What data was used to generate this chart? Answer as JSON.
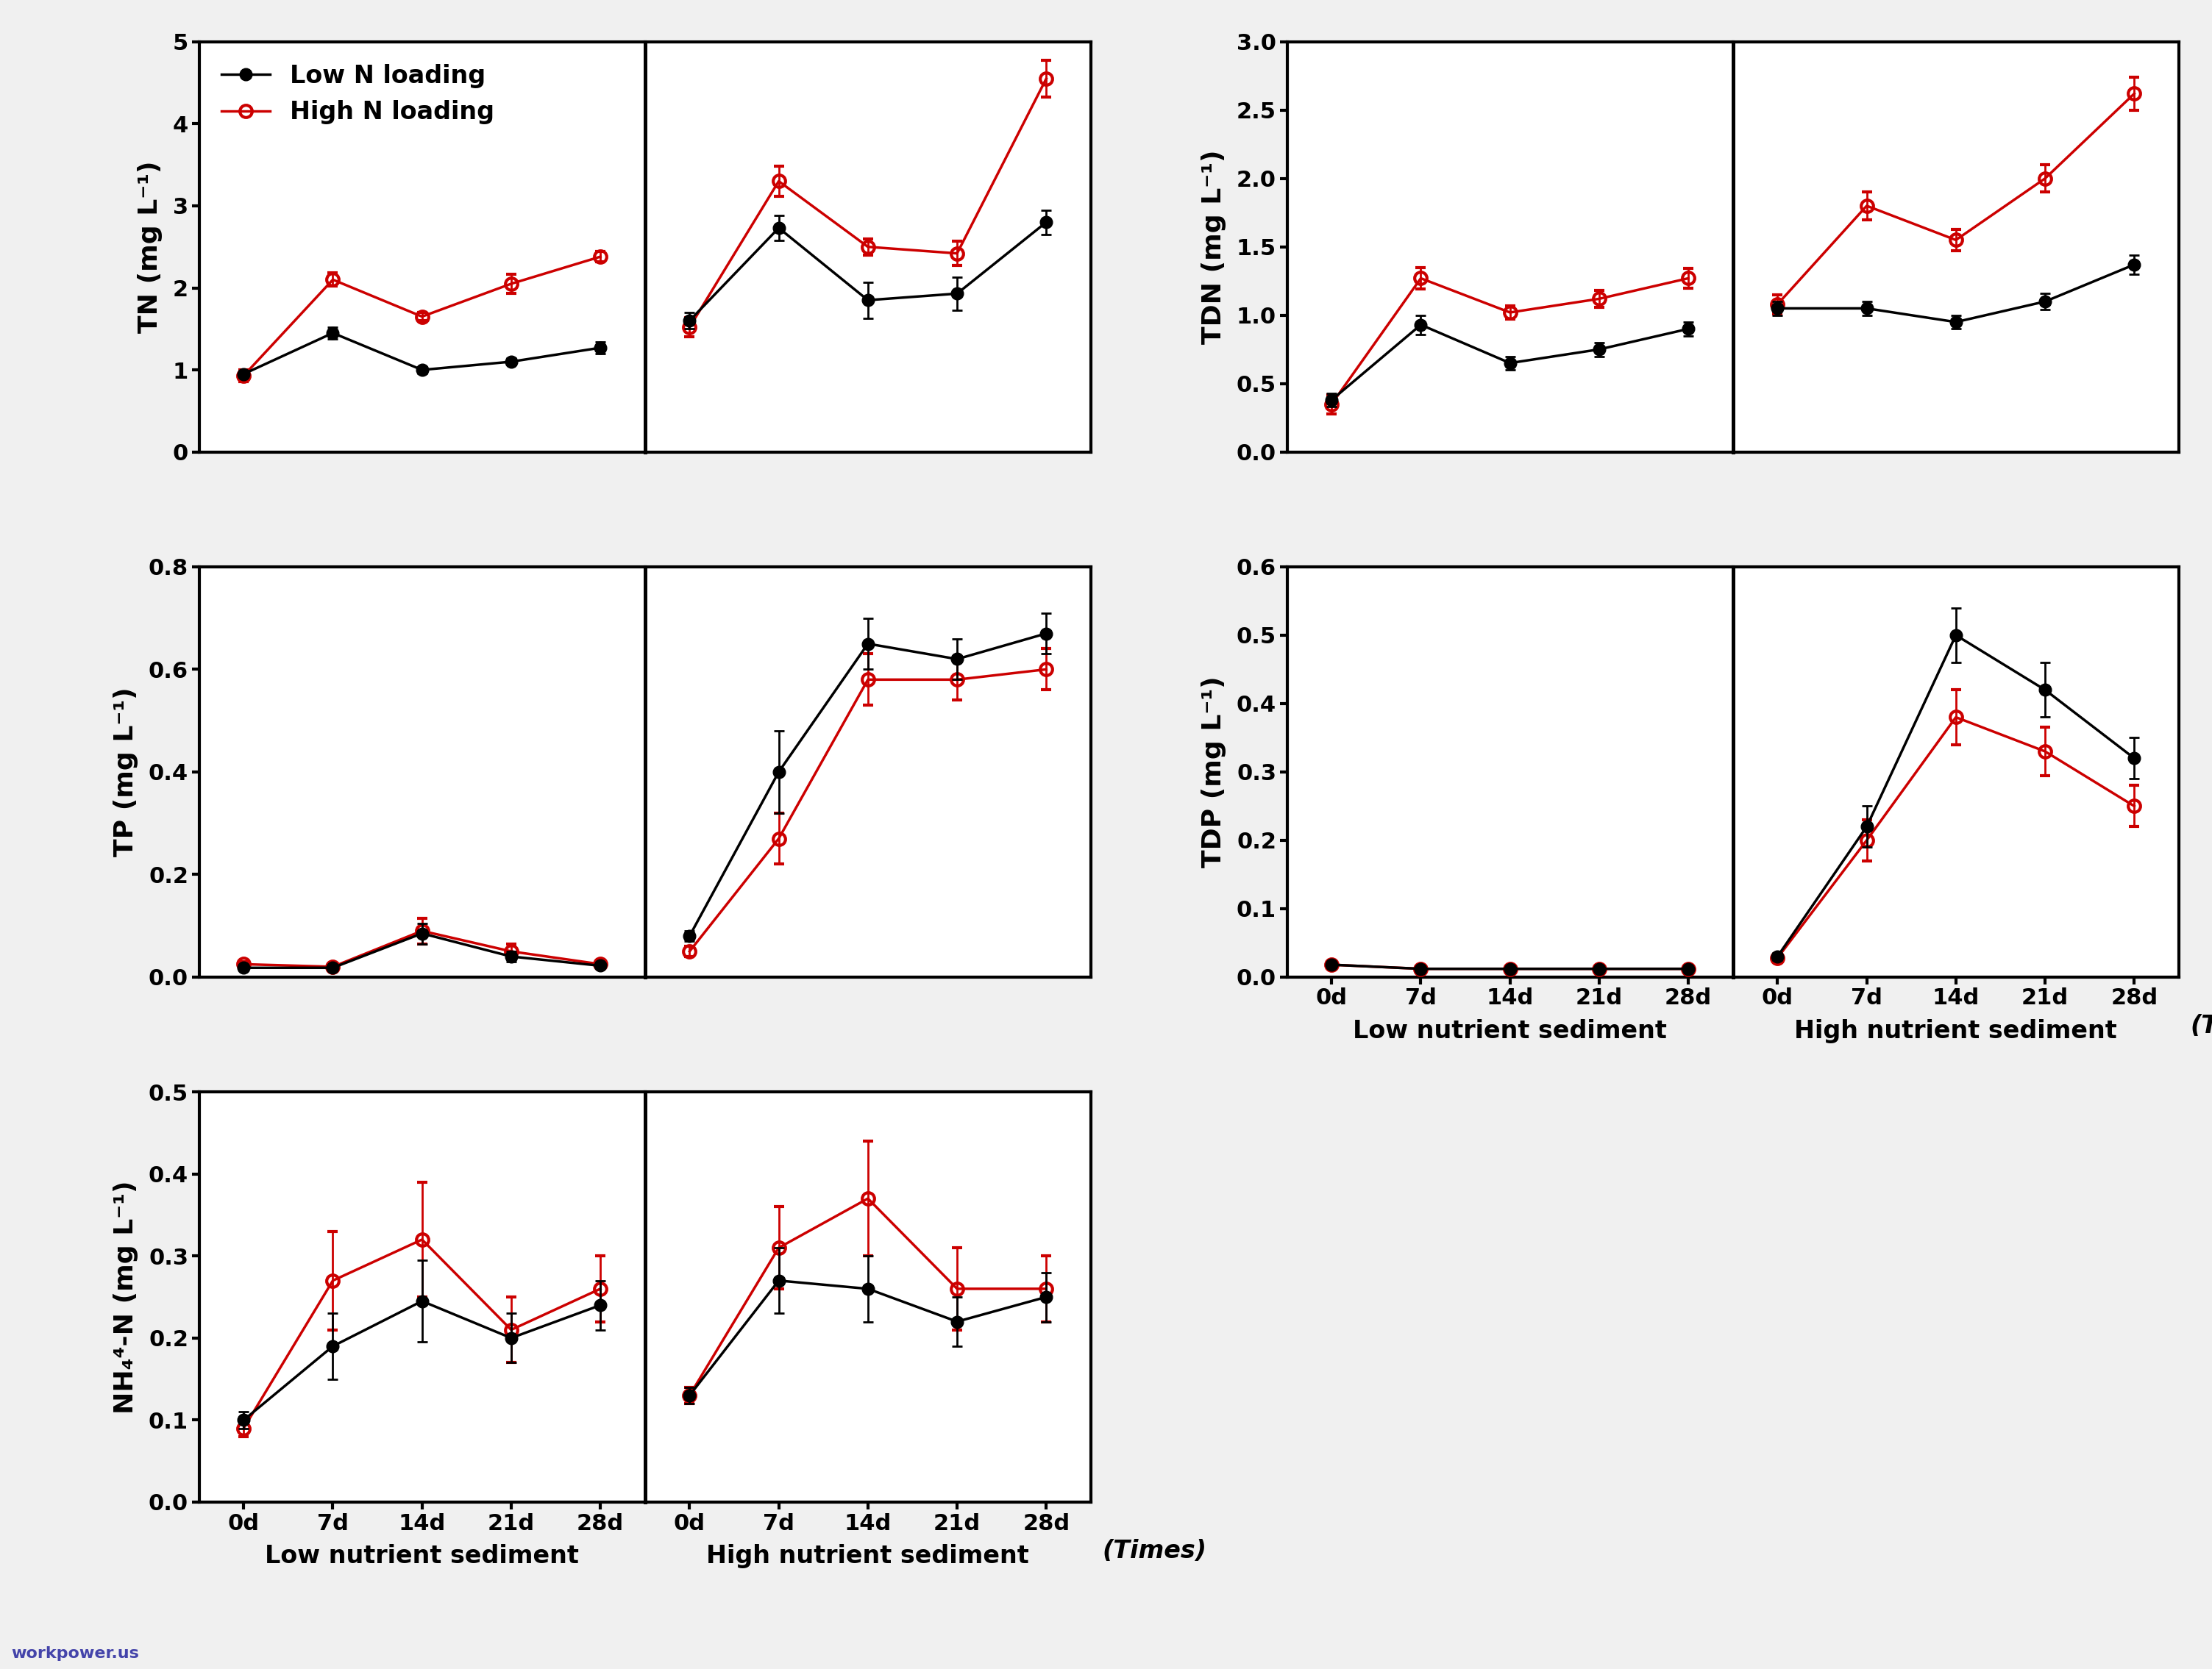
{
  "x_ticks": [
    "0d",
    "7d",
    "14d",
    "21d",
    "28d"
  ],
  "x_vals": [
    0,
    1,
    2,
    3,
    4
  ],
  "panels": {
    "TN": {
      "ylabel": "TN (mg L⁻¹)",
      "ylim": [
        0.0,
        5.0
      ],
      "yticks": [
        0.0,
        1.0,
        2.0,
        3.0,
        4.0,
        5.0
      ],
      "low_sed": {
        "black_y": [
          0.95,
          1.45,
          1.0,
          1.1,
          1.27
        ],
        "black_err": [
          0.04,
          0.07,
          0.04,
          0.04,
          0.07
        ],
        "red_y": [
          0.93,
          2.1,
          1.65,
          2.05,
          2.38
        ],
        "red_err": [
          0.07,
          0.08,
          0.05,
          0.12,
          0.06
        ]
      },
      "high_sed": {
        "black_y": [
          1.6,
          2.73,
          1.85,
          1.93,
          2.8
        ],
        "black_err": [
          0.1,
          0.15,
          0.22,
          0.2,
          0.15
        ],
        "red_y": [
          1.52,
          3.3,
          2.5,
          2.42,
          4.55
        ],
        "red_err": [
          0.12,
          0.18,
          0.1,
          0.15,
          0.22
        ]
      }
    },
    "TDN": {
      "ylabel": "TDN (mg L⁻¹)",
      "ylim": [
        0.0,
        3.0
      ],
      "yticks": [
        0.0,
        0.5,
        1.0,
        1.5,
        2.0,
        2.5,
        3.0
      ],
      "low_sed": {
        "black_y": [
          0.38,
          0.93,
          0.65,
          0.75,
          0.9
        ],
        "black_err": [
          0.05,
          0.07,
          0.05,
          0.05,
          0.05
        ],
        "red_y": [
          0.35,
          1.27,
          1.02,
          1.12,
          1.27
        ],
        "red_err": [
          0.07,
          0.08,
          0.05,
          0.06,
          0.07
        ]
      },
      "high_sed": {
        "black_y": [
          1.05,
          1.05,
          0.95,
          1.1,
          1.37
        ],
        "black_err": [
          0.05,
          0.05,
          0.05,
          0.06,
          0.07
        ],
        "red_y": [
          1.08,
          1.8,
          1.55,
          2.0,
          2.62
        ],
        "red_err": [
          0.07,
          0.1,
          0.08,
          0.1,
          0.12
        ]
      }
    },
    "TP": {
      "ylabel": "TP (mg L⁻¹)",
      "ylim": [
        0.0,
        0.8
      ],
      "yticks": [
        0.0,
        0.2,
        0.4,
        0.6,
        0.8
      ],
      "low_sed": {
        "black_y": [
          0.018,
          0.018,
          0.085,
          0.04,
          0.022
        ],
        "black_err": [
          0.004,
          0.004,
          0.02,
          0.01,
          0.004
        ],
        "red_y": [
          0.025,
          0.02,
          0.09,
          0.05,
          0.025
        ],
        "red_err": [
          0.005,
          0.005,
          0.025,
          0.015,
          0.005
        ]
      },
      "high_sed": {
        "black_y": [
          0.08,
          0.4,
          0.65,
          0.62,
          0.67
        ],
        "black_err": [
          0.01,
          0.08,
          0.05,
          0.04,
          0.04
        ],
        "red_y": [
          0.05,
          0.27,
          0.58,
          0.58,
          0.6
        ],
        "red_err": [
          0.01,
          0.05,
          0.05,
          0.04,
          0.04
        ]
      }
    },
    "TDP": {
      "ylabel": "TDP (mg L⁻¹)",
      "ylim": [
        0.0,
        0.6
      ],
      "yticks": [
        0.0,
        0.1,
        0.2,
        0.3,
        0.4,
        0.5,
        0.6
      ],
      "low_sed": {
        "black_y": [
          0.018,
          0.012,
          0.012,
          0.012,
          0.012
        ],
        "black_err": [
          0.003,
          0.002,
          0.002,
          0.002,
          0.002
        ],
        "red_y": [
          0.018,
          0.012,
          0.012,
          0.012,
          0.012
        ],
        "red_err": [
          0.003,
          0.002,
          0.002,
          0.002,
          0.002
        ]
      },
      "high_sed": {
        "black_y": [
          0.03,
          0.22,
          0.5,
          0.42,
          0.32
        ],
        "black_err": [
          0.005,
          0.03,
          0.04,
          0.04,
          0.03
        ],
        "red_y": [
          0.028,
          0.2,
          0.38,
          0.33,
          0.25
        ],
        "red_err": [
          0.005,
          0.03,
          0.04,
          0.035,
          0.03
        ]
      }
    },
    "NH4N": {
      "ylabel": "NH₄⁴-N (mg L⁻¹)",
      "ylim": [
        0.0,
        0.5
      ],
      "yticks": [
        0.0,
        0.1,
        0.2,
        0.3,
        0.4,
        0.5
      ],
      "low_sed": {
        "black_y": [
          0.1,
          0.19,
          0.245,
          0.2,
          0.24
        ],
        "black_err": [
          0.01,
          0.04,
          0.05,
          0.03,
          0.03
        ],
        "red_y": [
          0.09,
          0.27,
          0.32,
          0.21,
          0.26
        ],
        "red_err": [
          0.01,
          0.06,
          0.07,
          0.04,
          0.04
        ]
      },
      "high_sed": {
        "black_y": [
          0.13,
          0.27,
          0.26,
          0.22,
          0.25
        ],
        "black_err": [
          0.01,
          0.04,
          0.04,
          0.03,
          0.03
        ],
        "red_y": [
          0.13,
          0.31,
          0.37,
          0.26,
          0.26
        ],
        "red_err": [
          0.01,
          0.05,
          0.07,
          0.05,
          0.04
        ]
      }
    }
  },
  "black_color": "#000000",
  "red_color": "#cc0000",
  "bg_color": "#f0f0f0",
  "plot_bg": "#ffffff",
  "marker_size": 12,
  "linewidth": 2.5,
  "capsize": 5,
  "elinewidth": 2.0,
  "legend_label_black": "Low N loading",
  "legend_label_red": "High N loading",
  "xlabel_low": "Low nutrient sediment",
  "xlabel_high": "High nutrient sediment",
  "times_label": "(Times)",
  "watermark": "workpower.us",
  "tick_fontsize": 22,
  "label_fontsize": 26,
  "legend_fontsize": 24,
  "xlabel_fontsize": 24,
  "spine_lw": 3.0
}
